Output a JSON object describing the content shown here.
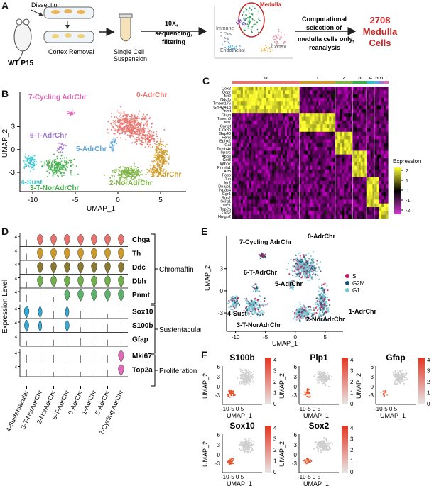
{
  "panels": {
    "A": "A",
    "B": "B",
    "C": "C",
    "D": "D",
    "E": "E",
    "F": "F"
  },
  "panelA": {
    "dissection": "Dissection",
    "mouse": "WT P15",
    "cortex_removal": "Cortex Removal",
    "single_cell_1": "Single Cell",
    "single_cell_2": "Suspension",
    "seq_1": "10X,",
    "seq_2": "sequencing,",
    "seq_3": "filtering",
    "thumb_medulla": "Medulla",
    "thumb_immune": "Immune",
    "thumb_endothelial": "Endothelial",
    "thumb_cortex": "Cortex",
    "comp_1": "Computational",
    "comp_2": "selection of",
    "comp_3": "medulla cells only,",
    "comp_4": "reanalysis",
    "result_1": "2708",
    "result_2": "Medulla",
    "result_3": "Cells",
    "colors": {
      "result": "#c62828",
      "medulla_ring": "#c62828"
    }
  },
  "panelB": {
    "xlabel": "UMAP_1",
    "ylabel": "UMAP_2",
    "xticks": [
      "-10",
      "-5",
      "0",
      "5"
    ],
    "yticks": [
      "3",
      "0",
      "-3"
    ],
    "clusters": [
      {
        "label": "0-AdrChr",
        "color": "#e8716b"
      },
      {
        "label": "1-AdrChr",
        "color": "#cf9a2c"
      },
      {
        "label": "2-NorAdrChr",
        "color": "#7cb342"
      },
      {
        "label": "3-T-NorAdrChr",
        "color": "#3fae49"
      },
      {
        "label": "4-Sust",
        "color": "#33c1c9"
      },
      {
        "label": "5-AdrChr",
        "color": "#5aa7df"
      },
      {
        "label": "6-T-AdrChr",
        "color": "#a077cf"
      },
      {
        "label": "7-Cycling AdrChr",
        "color": "#e06ab8"
      }
    ]
  },
  "panelC": {
    "top_labels": [
      "0",
      "1",
      "2",
      "3",
      "4",
      "5",
      "6",
      "7"
    ],
    "genes": [
      "Cox2",
      "Qdpr",
      "Mt2",
      "Ndufb",
      "Tmem176",
      "Gm42418",
      "Pnmt",
      "Chga",
      "Tmem6",
      "Mt1",
      "Cartpt",
      "Cox8b",
      "Gap43",
      "Penk",
      "Ephx2",
      "Gal",
      "Tmsb4x",
      "Sparc",
      "Apoe",
      "Cst3",
      "Igfbp7",
      "Pnmla1",
      "Atf3",
      "Fosb",
      "Jun",
      "Ier2",
      "Dnajb1",
      "Npas4",
      "Egr1",
      "Rgs2",
      "Scrg1",
      "Tac1",
      "Top2a",
      "Cks2",
      "Hmgb2"
    ],
    "legend_title": "Expression",
    "legend_ticks": [
      "2",
      "1",
      "0",
      "-1",
      "-2"
    ]
  },
  "panelD": {
    "ylabel": "Expression Level",
    "genes": [
      "Chga",
      "Th",
      "Ddc",
      "Dbh",
      "Pnmt",
      "Sox10",
      "S100b",
      "Gfap",
      "Mki67",
      "Top2a"
    ],
    "groups": [
      "Chromaffin",
      "Sustentacular",
      "Proliferation"
    ],
    "categories": [
      "4-Sustentacular",
      "3-T-NorAdrChr",
      "2-NorAdrChr",
      "6-T-AdrChr",
      "0-AdrChr",
      "1-AdrChr",
      "5-AdrChr",
      "7-Cycling AdrChr"
    ],
    "ytick": "4"
  },
  "panelE": {
    "xlabel": "UMAP_1",
    "ylabel": "UMAP_2",
    "xticks": [
      "-10",
      "-5",
      "0",
      "5"
    ],
    "yticks": [
      "3",
      "0",
      "-3"
    ],
    "cluster_labels": [
      "7-Cycling AdrChr",
      "0-AdrChr",
      "6-T-AdrChr",
      "5-AdrChr",
      "4-Sust",
      "3-T-NorAdrChr",
      "2-NorAdrChr",
      "1-AdrChr"
    ],
    "legend": [
      {
        "label": "S",
        "color": "#c2185b"
      },
      {
        "label": "G2M",
        "color": "#1b4f6e"
      },
      {
        "label": "G1",
        "color": "#7ac6cf"
      }
    ]
  },
  "panelF": {
    "xlabel": "UMAP_1",
    "ylabel": "UMAP_2",
    "xticks": "-10-5 0 5",
    "yticks": [
      "6",
      "3",
      "0",
      "-3"
    ],
    "scale_ticks": [
      "4",
      "3",
      "2",
      "1",
      "0"
    ],
    "genes": [
      "S100b",
      "Plp1",
      "Gfap",
      "Sox10",
      "Sox2"
    ]
  }
}
